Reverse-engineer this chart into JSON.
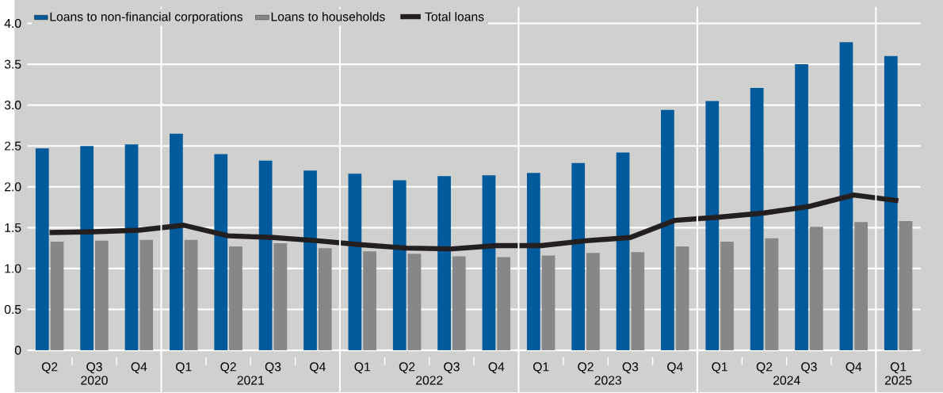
{
  "chart_data": {
    "type": "bar",
    "categories": [
      "Q2",
      "Q3",
      "Q4",
      "Q1",
      "Q2",
      "Q3",
      "Q4",
      "Q1",
      "Q2",
      "Q3",
      "Q4",
      "Q1",
      "Q2",
      "Q3",
      "Q4",
      "Q1",
      "Q2",
      "Q3",
      "Q4",
      "Q1"
    ],
    "series": [
      {
        "name": "Loans to non-financial corporations",
        "color": "#005a9c",
        "values": [
          2.47,
          2.5,
          2.52,
          2.65,
          2.4,
          2.32,
          2.2,
          2.16,
          2.08,
          2.13,
          2.14,
          2.17,
          2.29,
          2.42,
          2.94,
          3.05,
          3.21,
          3.5,
          3.77,
          3.6
        ]
      },
      {
        "name": "Loans to households",
        "color": "#878787",
        "values": [
          1.33,
          1.34,
          1.35,
          1.35,
          1.27,
          1.31,
          1.25,
          1.21,
          1.18,
          1.15,
          1.14,
          1.16,
          1.19,
          1.2,
          1.27,
          1.33,
          1.37,
          1.51,
          1.57,
          1.58
        ]
      },
      {
        "name": "Total loans",
        "type": "line",
        "color": "#231f20",
        "values": [
          1.44,
          1.45,
          1.47,
          1.53,
          1.4,
          1.38,
          1.34,
          1.29,
          1.25,
          1.24,
          1.28,
          1.28,
          1.34,
          1.38,
          1.59,
          1.63,
          1.68,
          1.76,
          1.9,
          1.83
        ]
      }
    ],
    "ylim": [
      0,
      4.2
    ],
    "yticks": [
      0,
      0.5,
      {
        "value": 1,
        "label": "1.0"
      },
      1.5,
      {
        "value": 2,
        "label": "2.0"
      },
      2.5,
      {
        "value": 3,
        "label": "3.0"
      },
      3.5,
      {
        "value": 4,
        "label": "4.0"
      }
    ],
    "grid": "y",
    "legend": "top left",
    "annotations": [
      "2020",
      "2021",
      "2022",
      "2023",
      "2024",
      "2025"
    ]
  }
}
